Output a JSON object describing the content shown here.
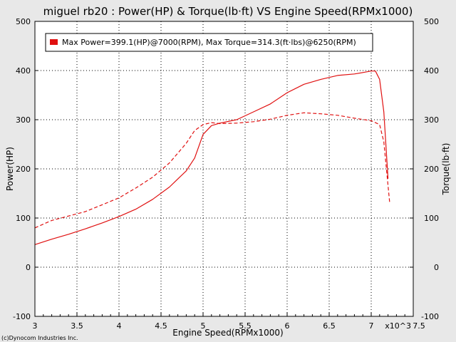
{
  "chart_data": {
    "type": "line",
    "title": "miguel rb20 : Power(HP) & Torque(lb·ft) VS Engine Speed(RPMx1000)",
    "xlabel": "Engine Speed(RPMx1000)",
    "ylabel": "Power(HP)",
    "y2label": "Torque(lb·ft)",
    "x_multiplier_label": "x10^3",
    "xlim": [
      3,
      7.5
    ],
    "ylim": [
      -100,
      500
    ],
    "y2lim": [
      -100,
      500
    ],
    "x_ticks": [
      "3",
      "3.5",
      "4",
      "4.5",
      "5",
      "5.5",
      "6",
      "6.5",
      "7",
      "7.5"
    ],
    "y_ticks": [
      "-100",
      "0",
      "100",
      "200",
      "300",
      "400",
      "500"
    ],
    "y2_ticks": [
      "-100",
      "0",
      "100",
      "200",
      "300",
      "400",
      "500"
    ],
    "grid": true,
    "legend_position": "top-left",
    "legend": "Max Power=399.1(HP)@7000(RPM), Max Torque=314.3(ft·lbs)@6250(RPM)",
    "credit": "(c)Dynocom Industries Inc.",
    "colors": {
      "line": "#e01010",
      "plot_bg": "#ffffff",
      "page_bg": "#e8e8e8"
    },
    "series": [
      {
        "style": "solid",
        "x": [
          3.0,
          3.2,
          3.4,
          3.6,
          3.8,
          4.0,
          4.2,
          4.4,
          4.6,
          4.8,
          4.9,
          5.0,
          5.1,
          5.2,
          5.4,
          5.6,
          5.8,
          6.0,
          6.2,
          6.4,
          6.6,
          6.8,
          6.9,
          7.0,
          7.05,
          7.1,
          7.15,
          7.2
        ],
        "values": [
          46,
          57,
          67,
          78,
          90,
          103,
          118,
          138,
          163,
          196,
          222,
          270,
          288,
          293,
          300,
          316,
          332,
          355,
          372,
          382,
          390,
          393,
          396,
          399,
          399,
          382,
          316,
          180
        ]
      },
      {
        "style": "dashed",
        "x": [
          3.0,
          3.2,
          3.4,
          3.6,
          3.8,
          4.0,
          4.2,
          4.4,
          4.6,
          4.8,
          4.9,
          5.0,
          5.1,
          5.2,
          5.4,
          5.6,
          5.8,
          6.0,
          6.2,
          6.4,
          6.6,
          6.8,
          7.0,
          7.1,
          7.15,
          7.22
        ],
        "values": [
          80,
          95,
          104,
          113,
          127,
          141,
          161,
          183,
          212,
          252,
          278,
          290,
          294,
          292,
          293,
          296,
          301,
          309,
          314,
          312,
          309,
          303,
          298,
          290,
          255,
          130
        ]
      }
    ]
  }
}
